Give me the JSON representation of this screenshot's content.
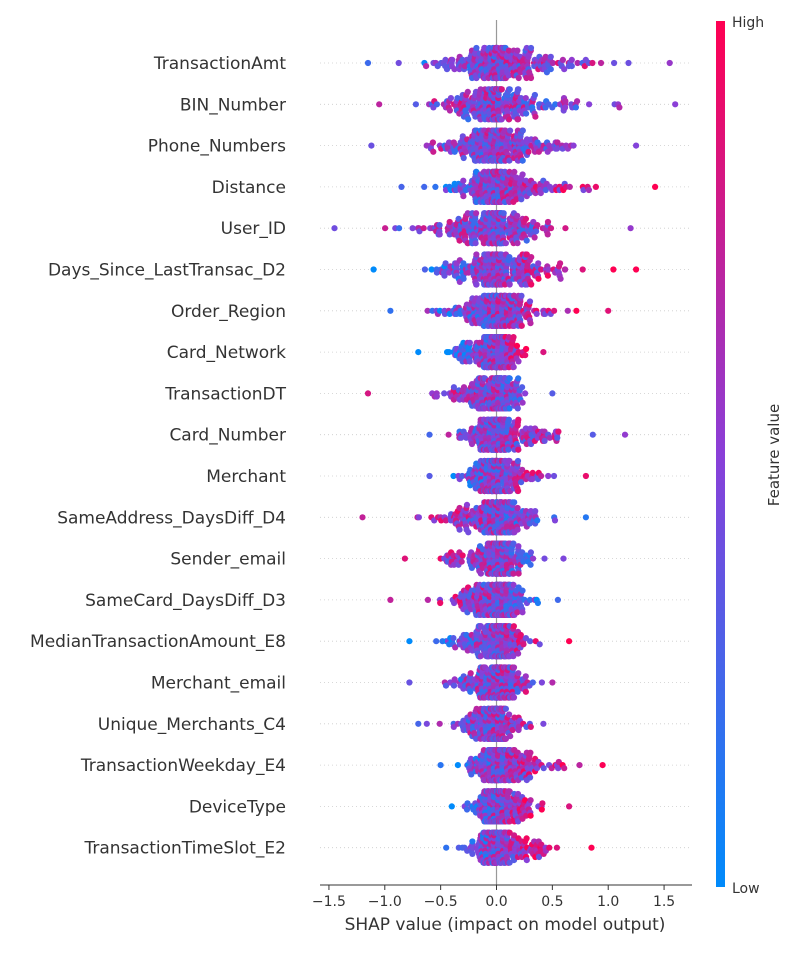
{
  "chart_data": {
    "type": "scatter",
    "subtype": "shap-beeswarm",
    "xlabel": "SHAP value (impact on model output)",
    "xlim": [
      -1.58,
      1.75
    ],
    "x_ticks": [
      -1.5,
      -1.0,
      -0.5,
      0.0,
      0.5,
      1.0,
      1.5
    ],
    "x_tick_labels": [
      "−1.5",
      "−1.0",
      "−0.5",
      "0.0",
      "0.5",
      "1.0",
      "1.5"
    ],
    "colorbar": {
      "label": "Feature value",
      "high_label": "High",
      "low_label": "Low",
      "low_color": "#008bfb",
      "high_color": "#ff0052"
    },
    "features": [
      {
        "name": "TransactionAmt",
        "min": -1.15,
        "max": 1.55,
        "spread": 1.0,
        "trend": 0.35,
        "seed": 11
      },
      {
        "name": "BIN_Number",
        "min": -1.05,
        "max": 1.6,
        "spread": 0.9,
        "trend": -0.2,
        "seed": 12
      },
      {
        "name": "Phone_Numbers",
        "min": -1.12,
        "max": 1.25,
        "spread": 0.95,
        "trend": 0.1,
        "seed": 13
      },
      {
        "name": "Distance",
        "min": -0.85,
        "max": 1.42,
        "spread": 0.9,
        "trend": 0.8,
        "seed": 14
      },
      {
        "name": "User_ID",
        "min": -1.45,
        "max": 1.2,
        "spread": 0.85,
        "trend": 0.15,
        "seed": 15
      },
      {
        "name": "Days_Since_LastTransac_D2",
        "min": -1.1,
        "max": 1.25,
        "spread": 0.9,
        "trend": 0.9,
        "seed": 16
      },
      {
        "name": "Order_Region",
        "min": -0.95,
        "max": 1.0,
        "spread": 0.85,
        "trend": 0.7,
        "seed": 17
      },
      {
        "name": "Card_Network",
        "min": -0.7,
        "max": 0.42,
        "spread": 0.7,
        "trend": 1.0,
        "seed": 18
      },
      {
        "name": "TransactionDT",
        "min": -1.15,
        "max": 0.5,
        "spread": 0.75,
        "trend": -0.5,
        "seed": 19
      },
      {
        "name": "Card_Number",
        "min": -0.6,
        "max": 1.15,
        "spread": 0.85,
        "trend": 0.3,
        "seed": 20
      },
      {
        "name": "Merchant",
        "min": -0.6,
        "max": 0.8,
        "spread": 0.8,
        "trend": 0.6,
        "seed": 21
      },
      {
        "name": "SameAddress_DaysDiff_D4",
        "min": -1.2,
        "max": 0.8,
        "spread": 0.8,
        "trend": -0.6,
        "seed": 22
      },
      {
        "name": "Sender_email",
        "min": -0.82,
        "max": 0.6,
        "spread": 0.8,
        "trend": -0.4,
        "seed": 23
      },
      {
        "name": "SameCard_DaysDiff_D3",
        "min": -0.95,
        "max": 0.55,
        "spread": 0.8,
        "trend": -0.5,
        "seed": 24
      },
      {
        "name": "MedianTransactionAmount_E8",
        "min": -0.78,
        "max": 0.65,
        "spread": 0.8,
        "trend": 0.7,
        "seed": 25
      },
      {
        "name": "Merchant_email",
        "min": -0.78,
        "max": 0.5,
        "spread": 0.8,
        "trend": 0.3,
        "seed": 26
      },
      {
        "name": "Unique_Merchants_C4",
        "min": -0.7,
        "max": 0.42,
        "spread": 0.7,
        "trend": 0.2,
        "seed": 27
      },
      {
        "name": "TransactionWeekday_E4",
        "min": -0.5,
        "max": 0.95,
        "spread": 0.75,
        "trend": 0.85,
        "seed": 28
      },
      {
        "name": "DeviceType",
        "min": -0.4,
        "max": 0.65,
        "spread": 0.7,
        "trend": 0.9,
        "seed": 29
      },
      {
        "name": "TransactionTimeSlot_E2",
        "min": -0.45,
        "max": 0.85,
        "spread": 0.75,
        "trend": 0.9,
        "seed": 30
      }
    ]
  }
}
